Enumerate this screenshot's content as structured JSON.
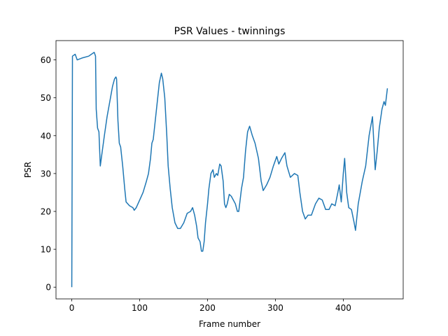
{
  "chart_data": {
    "type": "line",
    "title": "PSR Values - twinnings",
    "xlabel": "Frame number",
    "ylabel": "PSR",
    "x": [
      0,
      1,
      5,
      8,
      15,
      25,
      33,
      35,
      36,
      38,
      40,
      42,
      45,
      48,
      52,
      56,
      60,
      63,
      65,
      66,
      68,
      70,
      72,
      75,
      78,
      80,
      85,
      90,
      92,
      95,
      100,
      105,
      110,
      113,
      116,
      118,
      120,
      123,
      126,
      129,
      132,
      134,
      137,
      140,
      142,
      145,
      148,
      152,
      156,
      160,
      165,
      170,
      175,
      178,
      181,
      184,
      186,
      189,
      191,
      193,
      195,
      197,
      200,
      202,
      205,
      208,
      210,
      213,
      215,
      218,
      220,
      223,
      225,
      227,
      229,
      232,
      235,
      238,
      241,
      244,
      246,
      250,
      253,
      256,
      259,
      262,
      266,
      270,
      275,
      279,
      282,
      287,
      292,
      297,
      302,
      305,
      309,
      314,
      317,
      322,
      328,
      333,
      336,
      340,
      344,
      348,
      353,
      359,
      364,
      369,
      374,
      379,
      383,
      388,
      392,
      394,
      397,
      400,
      402,
      405,
      408,
      412,
      416,
      418,
      422,
      428,
      433,
      438,
      443,
      447,
      450,
      453,
      457,
      460,
      462,
      465
    ],
    "series": [
      {
        "name": "PSR",
        "color": "#1f77b4",
        "values": [
          0,
          61,
          61.5,
          60,
          60.5,
          61,
          62,
          61,
          47,
          42,
          41,
          32,
          36,
          40,
          45,
          49,
          53,
          55,
          55.5,
          55,
          44,
          38,
          37,
          32,
          26,
          22.5,
          21.5,
          21,
          20.3,
          21,
          23,
          25,
          28,
          30,
          34,
          38,
          39,
          44,
          49,
          54,
          56.5,
          55,
          50,
          40,
          32,
          26,
          21,
          17,
          15.5,
          15.5,
          17,
          19.5,
          20,
          21,
          19,
          16,
          13,
          12,
          9.5,
          9.5,
          12,
          17,
          22,
          26,
          30,
          31,
          29,
          30,
          29.5,
          32.5,
          32,
          28,
          22,
          21,
          22,
          24.5,
          24,
          23,
          22,
          20,
          20,
          26,
          29,
          36,
          41,
          42.5,
          40,
          38,
          34,
          28,
          25.5,
          27,
          29,
          32,
          34.5,
          32.5,
          34,
          35.5,
          32,
          29,
          30,
          29.5,
          25,
          20,
          18,
          19,
          19,
          22,
          23.5,
          23,
          20.5,
          20.5,
          22,
          21.5,
          25,
          27,
          22.5,
          30,
          34,
          25,
          21,
          20.5,
          17,
          15,
          22,
          28,
          32,
          40,
          45,
          31,
          36,
          42,
          47,
          49,
          48,
          52.5
        ]
      }
    ],
    "xlim": [
      -23.25,
      488.25
    ],
    "ylim": [
      -3.1,
      65.1
    ],
    "xticks": [
      0,
      100,
      200,
      300,
      400
    ],
    "yticks": [
      0,
      10,
      20,
      30,
      40,
      50,
      60
    ]
  }
}
